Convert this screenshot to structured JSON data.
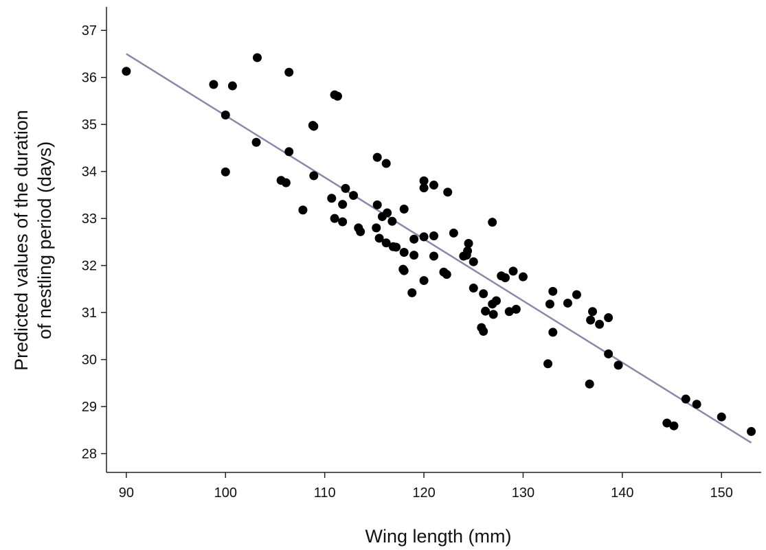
{
  "chart_data": {
    "type": "scatter",
    "title": "",
    "xlabel": "Wing length (mm)",
    "ylabel_line1": "Predicted values of the duration",
    "ylabel_line2": "of nestling period (days)",
    "xlim": [
      88,
      154
    ],
    "ylim": [
      27.6,
      37.5
    ],
    "xticks": [
      90,
      100,
      110,
      120,
      130,
      140,
      150
    ],
    "yticks": [
      28,
      29,
      30,
      31,
      32,
      33,
      34,
      35,
      36,
      37
    ],
    "grid": false,
    "colors": {
      "points": "#000000",
      "fit_line": "#8a87a8",
      "axes": "#222222"
    },
    "fit_line": {
      "x": [
        90,
        153
      ],
      "y": [
        36.5,
        28.23
      ]
    },
    "points": [
      {
        "x": 90.0,
        "y": 36.13
      },
      {
        "x": 98.8,
        "y": 35.85
      },
      {
        "x": 100.7,
        "y": 35.82
      },
      {
        "x": 103.2,
        "y": 36.42
      },
      {
        "x": 106.4,
        "y": 36.11
      },
      {
        "x": 100.0,
        "y": 35.2
      },
      {
        "x": 100.0,
        "y": 33.99
      },
      {
        "x": 103.1,
        "y": 34.62
      },
      {
        "x": 106.4,
        "y": 34.42
      },
      {
        "x": 108.8,
        "y": 34.98
      },
      {
        "x": 108.9,
        "y": 34.96
      },
      {
        "x": 111.0,
        "y": 35.63
      },
      {
        "x": 111.3,
        "y": 35.6
      },
      {
        "x": 105.6,
        "y": 33.81
      },
      {
        "x": 106.1,
        "y": 33.76
      },
      {
        "x": 108.9,
        "y": 33.91
      },
      {
        "x": 107.8,
        "y": 33.18
      },
      {
        "x": 110.7,
        "y": 33.43
      },
      {
        "x": 111.0,
        "y": 33.0
      },
      {
        "x": 111.8,
        "y": 33.3
      },
      {
        "x": 112.1,
        "y": 33.64
      },
      {
        "x": 112.9,
        "y": 33.49
      },
      {
        "x": 111.8,
        "y": 32.93
      },
      {
        "x": 113.4,
        "y": 32.8
      },
      {
        "x": 113.6,
        "y": 32.72
      },
      {
        "x": 115.3,
        "y": 34.3
      },
      {
        "x": 116.2,
        "y": 34.17
      },
      {
        "x": 115.3,
        "y": 33.29
      },
      {
        "x": 115.8,
        "y": 33.04
      },
      {
        "x": 116.3,
        "y": 33.12
      },
      {
        "x": 115.2,
        "y": 32.8
      },
      {
        "x": 115.5,
        "y": 32.58
      },
      {
        "x": 116.8,
        "y": 32.94
      },
      {
        "x": 118.0,
        "y": 33.2
      },
      {
        "x": 116.2,
        "y": 32.48
      },
      {
        "x": 116.9,
        "y": 32.4
      },
      {
        "x": 117.2,
        "y": 32.39
      },
      {
        "x": 118.0,
        "y": 32.28
      },
      {
        "x": 119.0,
        "y": 32.56
      },
      {
        "x": 119.0,
        "y": 32.22
      },
      {
        "x": 117.9,
        "y": 31.92
      },
      {
        "x": 118.0,
        "y": 31.89
      },
      {
        "x": 118.8,
        "y": 31.42
      },
      {
        "x": 120.0,
        "y": 33.8
      },
      {
        "x": 120.0,
        "y": 33.65
      },
      {
        "x": 121.0,
        "y": 33.71
      },
      {
        "x": 122.4,
        "y": 33.56
      },
      {
        "x": 120.0,
        "y": 32.61
      },
      {
        "x": 121.0,
        "y": 32.63
      },
      {
        "x": 123.0,
        "y": 32.69
      },
      {
        "x": 121.0,
        "y": 32.2
      },
      {
        "x": 120.0,
        "y": 31.68
      },
      {
        "x": 122.0,
        "y": 31.86
      },
      {
        "x": 122.3,
        "y": 31.81
      },
      {
        "x": 124.0,
        "y": 32.2
      },
      {
        "x": 124.3,
        "y": 32.22
      },
      {
        "x": 124.4,
        "y": 32.31
      },
      {
        "x": 124.5,
        "y": 32.47
      },
      {
        "x": 125.0,
        "y": 32.08
      },
      {
        "x": 126.9,
        "y": 32.92
      },
      {
        "x": 125.0,
        "y": 31.52
      },
      {
        "x": 126.0,
        "y": 31.4
      },
      {
        "x": 126.2,
        "y": 31.03
      },
      {
        "x": 126.9,
        "y": 31.18
      },
      {
        "x": 127.3,
        "y": 31.25
      },
      {
        "x": 125.8,
        "y": 30.68
      },
      {
        "x": 126.0,
        "y": 30.6
      },
      {
        "x": 127.0,
        "y": 30.96
      },
      {
        "x": 127.8,
        "y": 31.78
      },
      {
        "x": 128.2,
        "y": 31.74
      },
      {
        "x": 129.0,
        "y": 31.88
      },
      {
        "x": 130.0,
        "y": 31.76
      },
      {
        "x": 128.6,
        "y": 31.02
      },
      {
        "x": 129.3,
        "y": 31.07
      },
      {
        "x": 132.5,
        "y": 29.91
      },
      {
        "x": 132.7,
        "y": 31.18
      },
      {
        "x": 133.0,
        "y": 31.45
      },
      {
        "x": 133.0,
        "y": 30.58
      },
      {
        "x": 134.5,
        "y": 31.2
      },
      {
        "x": 135.4,
        "y": 31.38
      },
      {
        "x": 137.0,
        "y": 31.02
      },
      {
        "x": 136.8,
        "y": 30.84
      },
      {
        "x": 137.7,
        "y": 30.75
      },
      {
        "x": 138.6,
        "y": 30.89
      },
      {
        "x": 136.7,
        "y": 29.48
      },
      {
        "x": 138.6,
        "y": 30.12
      },
      {
        "x": 139.6,
        "y": 29.88
      },
      {
        "x": 144.5,
        "y": 28.65
      },
      {
        "x": 145.2,
        "y": 28.59
      },
      {
        "x": 146.4,
        "y": 29.16
      },
      {
        "x": 147.5,
        "y": 29.05
      },
      {
        "x": 150.0,
        "y": 28.78
      },
      {
        "x": 153.0,
        "y": 28.47
      }
    ]
  }
}
